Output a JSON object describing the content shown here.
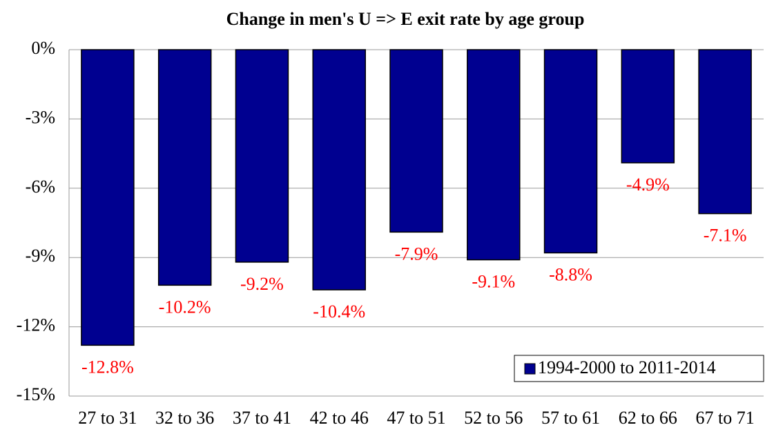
{
  "chart_data": {
    "type": "bar",
    "title": "Change in men's U => E exit rate by age group",
    "categories": [
      "27 to 31",
      "32 to 36",
      "37 to 41",
      "42 to 46",
      "47 to 51",
      "52 to 56",
      "57 to 61",
      "62 to 66",
      "67 to 71"
    ],
    "series": [
      {
        "name": "1994-2000 to 2011-2014",
        "color": "#000090",
        "values": [
          -12.8,
          -10.2,
          -9.2,
          -10.4,
          -7.9,
          -9.1,
          -8.8,
          -4.9,
          -7.1
        ],
        "value_labels": [
          "-12.8%",
          "-10.2%",
          "-9.2%",
          "-10.4%",
          "-7.9%",
          "-9.1%",
          "-8.8%",
          "-4.9%",
          "-7.1%"
        ]
      }
    ],
    "ylim": [
      -15,
      0
    ],
    "yticks": [
      {
        "value": 0,
        "label": "0%"
      },
      {
        "value": -3,
        "label": "-3%"
      },
      {
        "value": -6,
        "label": "-6%"
      },
      {
        "value": -9,
        "label": "-9%"
      },
      {
        "value": -12,
        "label": "-12%"
      },
      {
        "value": -15,
        "label": "-15%"
      }
    ],
    "grid": true,
    "legend": "lower right",
    "value_label_color": "#ff0000"
  }
}
